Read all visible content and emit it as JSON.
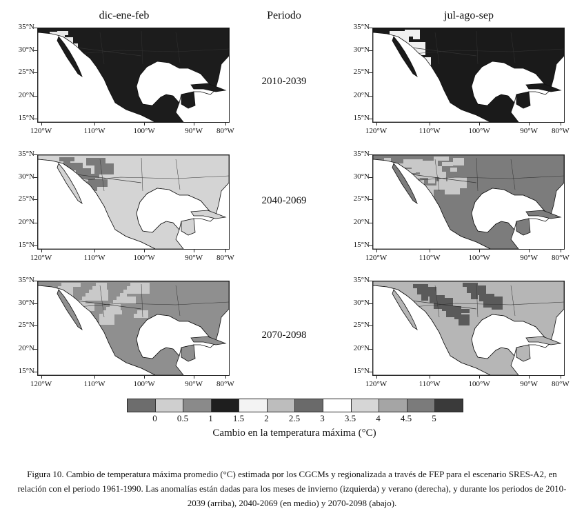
{
  "column_titles": {
    "left": "dic-ene-feb",
    "middle": "Periodo",
    "right": "jul-ago-sep"
  },
  "periods": [
    "2010-2039",
    "2040-2069",
    "2070-2098"
  ],
  "axes": {
    "lat_labels": [
      "35°N",
      "30°N",
      "25°N",
      "20°N",
      "15°N"
    ],
    "lon_labels": [
      "120°W",
      "110°W",
      "100°W",
      "90°W",
      "80°W"
    ]
  },
  "legend": {
    "title": "Cambio en la temperatura máxima (°C)",
    "tick_labels": [
      "0",
      "0.5",
      "1",
      "1.5",
      "2",
      "2.5",
      "3",
      "3.5",
      "4",
      "4.5",
      "5"
    ],
    "colors": [
      "#6d6d6d",
      "#cfcfcf",
      "#8a8a8a",
      "#1e1e1e",
      "#f3f3f3",
      "#bdbdbd",
      "#6a6a6a",
      "#ffffff",
      "#d6d6d6",
      "#a5a5a5",
      "#7b7b7b",
      "#3a3a3a"
    ]
  },
  "panels": [
    {
      "id": "winter-2010",
      "season": "dic-ene-feb",
      "period": "2010-2039",
      "land_fill": "#1c1c1c",
      "accent_fill": "#e8e8e8"
    },
    {
      "id": "summer-2010",
      "season": "jul-ago-sep",
      "period": "2010-2039",
      "land_fill": "#1a1a1a",
      "accent_fill": "#f0f0f0"
    },
    {
      "id": "winter-2040",
      "season": "dic-ene-feb",
      "period": "2040-2069",
      "land_fill": "#d4d4d4",
      "accent_fill": "#7a7a7a"
    },
    {
      "id": "summer-2040",
      "season": "jul-ago-sep",
      "period": "2040-2069",
      "land_fill": "#7c7c7c",
      "accent_fill": "#c8c8c8"
    },
    {
      "id": "winter-2070",
      "season": "dic-ene-feb",
      "period": "2070-2098",
      "land_fill": "#8f8f8f",
      "accent_fill": "#c9c9c9"
    },
    {
      "id": "summer-2070",
      "season": "jul-ago-sep",
      "period": "2070-2098",
      "land_fill": "#b6b6b6",
      "accent_fill": "#5a5a5a"
    }
  ],
  "caption": "Figura 10. Cambio de temperatura máxima promedio (°C) estimada por los CGCMs y regionalizada a través de FEP para el escenario SRES-A2, en relación con el periodo 1961-1990. Las anomalías están dadas para los meses de invierno (izquierda) y verano (derecha), y durante los periodos de 2010-2039 (arriba), 2040-2069 (en medio) y 2070-2098 (abajo)."
}
